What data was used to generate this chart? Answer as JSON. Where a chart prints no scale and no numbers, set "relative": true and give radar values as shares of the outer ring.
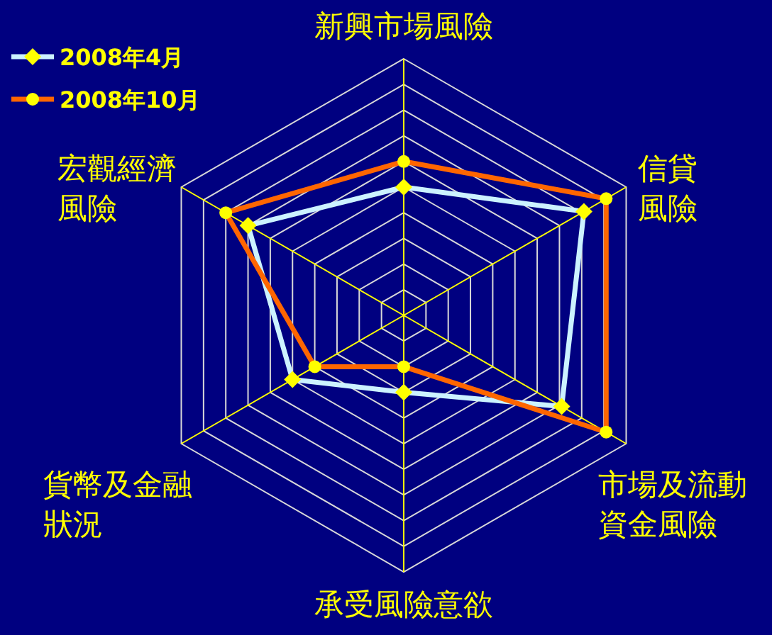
{
  "chart_data": {
    "type": "radar",
    "relative": true,
    "grid": true,
    "legend": "top left",
    "categories": [
      "新興市場風險",
      "信貸風險",
      "市場及流動資金風險",
      "承受風險意欲",
      "貨幣及金融狀況",
      "宏觀經濟風險"
    ],
    "series": [
      {
        "name": "2008年4月",
        "color": "#ccf2ff",
        "marker": "diamond",
        "values": [
          0.5,
          0.81,
          0.71,
          0.3,
          0.5,
          0.7
        ]
      },
      {
        "name": "2008年10月",
        "color": "#ff6600",
        "marker": "circle",
        "values": [
          0.6,
          0.91,
          0.91,
          0.2,
          0.4,
          0.8
        ]
      }
    ]
  }
}
